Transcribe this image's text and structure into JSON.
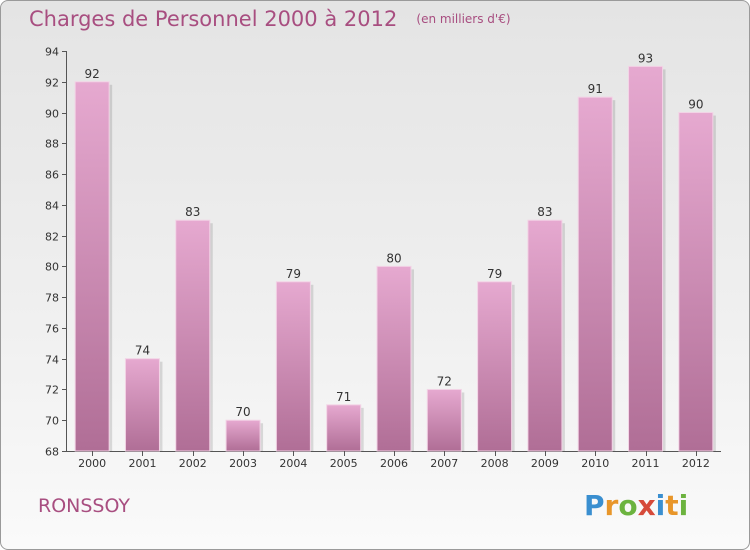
{
  "header": {
    "title": "Charges de Personnel 2000 à 2012",
    "subtitle": "(en milliers d'€)"
  },
  "footer": {
    "commune": "RONSSOY",
    "logo_text": "Proxiti",
    "logo_letters": [
      {
        "ch": "P",
        "color": "#3a8fd0"
      },
      {
        "ch": "r",
        "color": "#e8962a"
      },
      {
        "ch": "o",
        "color": "#6cb33f"
      },
      {
        "ch": "x",
        "color": "#d64a3a"
      },
      {
        "ch": "i",
        "color": "#3a8fd0"
      },
      {
        "ch": "t",
        "color": "#e8962a"
      },
      {
        "ch": "i",
        "color": "#6cb33f"
      }
    ]
  },
  "colors": {
    "bar_top": "#e6a9d0",
    "bar_bottom": "#b06e96",
    "accent": "#a84e80"
  },
  "chart_data": {
    "type": "bar",
    "title": "Charges de Personnel 2000 à 2012",
    "subtitle": "(en milliers d'€)",
    "categories": [
      "2000",
      "2001",
      "2002",
      "2003",
      "2004",
      "2005",
      "2006",
      "2007",
      "2008",
      "2009",
      "2010",
      "2011",
      "2012"
    ],
    "values": [
      92,
      74,
      83,
      70,
      79,
      71,
      80,
      72,
      79,
      83,
      91,
      93,
      90
    ],
    "ylim": [
      68,
      94
    ],
    "yticks": [
      68,
      70,
      72,
      74,
      76,
      78,
      80,
      82,
      84,
      86,
      88,
      90,
      92,
      94
    ],
    "grid": false,
    "data_labels": true
  }
}
